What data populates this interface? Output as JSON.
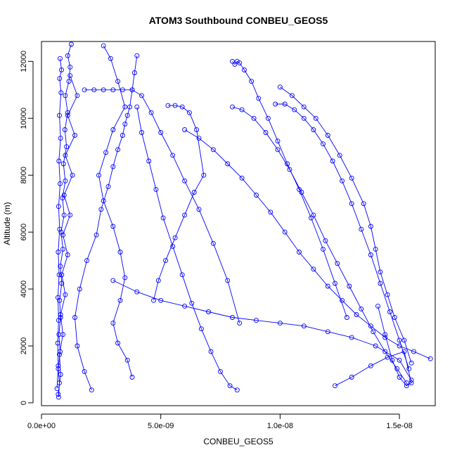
{
  "chart_data": {
    "type": "scatter",
    "title": "ATOM3 Southbound CONBEU_GEOS5",
    "xlabel": "CONBEU_GEOS5",
    "ylabel": "Altitude (m)",
    "xlim": [
      0,
      1.65e-08
    ],
    "ylim": [
      -100,
      12700
    ],
    "xticks": [
      0,
      5e-09,
      1e-08,
      1.5e-08
    ],
    "xtick_labels": [
      "0.0e+00",
      "5.0e-09",
      "1.0e-08",
      "1.5e-08"
    ],
    "yticks": [
      0,
      2000,
      4000,
      6000,
      8000,
      10000,
      12000
    ],
    "ytick_labels": [
      "0",
      "2000",
      "4000",
      "6000",
      "8000",
      "10000",
      "12000"
    ],
    "marker": "open-circle",
    "connected": true,
    "color": "#0000ff",
    "series": [
      {
        "x": [
          7.2e-10,
          7.5e-10,
          7e-10,
          7.8e-10,
          7.3e-10,
          8e-10,
          7.6e-10,
          8.5e-10,
          7.9e-10,
          9e-10,
          8.2e-10,
          9.5e-10,
          8.8e-10,
          1e-09,
          9.2e-10,
          1.05e-09,
          9.8e-10,
          1.1e-09,
          1e-09,
          1.15e-09,
          1.2e-09,
          1.1e-09,
          1.25e-09
        ],
        "y": [
          200,
          700,
          1200,
          1800,
          2400,
          3000,
          3600,
          4200,
          4800,
          5400,
          6000,
          6600,
          7200,
          7800,
          8400,
          9000,
          9600,
          10200,
          10800,
          11300,
          11800,
          12200,
          12600
        ]
      },
      {
        "x": [
          7e-10,
          8e-10,
          7.5e-10,
          9e-10,
          8e-10,
          1e-09,
          8.5e-10,
          1.1e-09,
          9e-10,
          1.2e-09,
          9.5e-10,
          1.3e-09,
          1e-09,
          1.4e-09,
          1.1e-09,
          1.5e-09,
          1.2e-09
        ],
        "y": [
          300,
          1000,
          1700,
          2400,
          3100,
          3800,
          4500,
          5200,
          5900,
          6600,
          7300,
          8000,
          8700,
          9400,
          10100,
          10800,
          11500
        ]
      },
      {
        "x": [
          6.5e-10,
          7e-10,
          6.8e-10,
          7.2e-10,
          6.9e-10,
          7.4e-10,
          7e-10,
          7.6e-10,
          7.2e-10,
          7.8e-10,
          7.3e-10,
          8e-10,
          7.5e-10,
          8.2e-10,
          7.6e-10,
          8.4e-10,
          7.8e-10
        ],
        "y": [
          500,
          1300,
          2100,
          2900,
          3700,
          4500,
          5300,
          6100,
          6900,
          7700,
          8500,
          9300,
          10100,
          10900,
          11400,
          11700,
          12100
        ]
      },
      {
        "x": [
          2.1e-09,
          1.8e-09,
          1.5e-09,
          1.4e-09,
          1.6e-09,
          1.9e-09,
          2.3e-09,
          2.5e-09,
          2.8e-09,
          3e-09,
          3.2e-09,
          3.4e-09,
          3.5e-09,
          3.6e-09,
          3.7e-09,
          3.8e-09,
          3.9e-09,
          4e-09
        ],
        "y": [
          450,
          1100,
          2000,
          3000,
          4000,
          5000,
          5900,
          6800,
          7600,
          8300,
          8900,
          9400,
          9800,
          10100,
          10400,
          11000,
          11600,
          12200
        ]
      },
      {
        "x": [
          2.6e-09,
          2.9e-09,
          3.2e-09,
          3.5e-09,
          3e-09,
          2.7e-09,
          2.4e-09,
          2.6e-09,
          3e-09,
          3.3e-09,
          3.5e-09,
          3.3e-09,
          3e-09,
          3.2e-09,
          3.6e-09,
          3.8e-09
        ],
        "y": [
          12550,
          12100,
          11300,
          10400,
          9600,
          8800,
          8000,
          7100,
          6200,
          5300,
          4400,
          3600,
          2800,
          2100,
          1500,
          900
        ]
      },
      {
        "x": [
          1.8e-09,
          2.2e-09,
          2.6e-09,
          3e-09,
          3.4e-09,
          3.8e-09,
          4.2e-09,
          4.6e-09,
          5e-09,
          5.5e-09,
          6e-09,
          6.6e-09,
          7.2e-09,
          7.8e-09,
          8.3e-09
        ],
        "y": [
          11000,
          11000,
          11000,
          11000,
          11000,
          11000,
          10800,
          10200,
          9500,
          8700,
          7800,
          6800,
          5600,
          4300,
          2800
        ]
      },
      {
        "x": [
          4e-09,
          4.2e-09,
          4.5e-09,
          4.8e-09,
          5.1e-09,
          5.5e-09,
          5.9e-09,
          6.3e-09,
          6.7e-09,
          7.1e-09,
          7.5e-09,
          7.9e-09,
          8.2e-09
        ],
        "y": [
          10400,
          9500,
          8500,
          7500,
          6500,
          5500,
          4500,
          3500,
          2600,
          1800,
          1100,
          600,
          450
        ]
      },
      {
        "x": [
          5.3e-09,
          5.6e-09,
          5.9e-09,
          6.2e-09,
          6.5e-09,
          6.8e-09,
          6.4e-09,
          6e-09,
          5.6e-09,
          5.2e-09,
          4.9e-09,
          4.7e-09
        ],
        "y": [
          10450,
          10450,
          10400,
          10200,
          9600,
          8000,
          7400,
          6600,
          5800,
          5000,
          4300,
          3600
        ]
      },
      {
        "x": [
          8e-09,
          8.1e-09,
          8.2e-09,
          8.3e-09,
          8.5e-09,
          8.8e-09,
          9.1e-09,
          9.5e-09,
          9.9e-09,
          1.03e-08,
          1.08e-08,
          1.13e-08,
          1.18e-08,
          1.23e-08,
          1.28e-08
        ],
        "y": [
          12000,
          11900,
          12000,
          11950,
          11700,
          11300,
          10700,
          10000,
          9200,
          8400,
          7500,
          6500,
          5400,
          4200,
          3000
        ]
      },
      {
        "x": [
          8e-09,
          8.4e-09,
          8.9e-09,
          9.4e-09,
          9.9e-09,
          1.04e-08,
          1.09e-08,
          1.14e-08,
          1.19e-08,
          1.24e-08,
          1.29e-08,
          1.34e-08,
          1.39e-08,
          1.44e-08,
          1.49e-08,
          1.53e-08
        ],
        "y": [
          10400,
          10300,
          10000,
          9500,
          8900,
          8200,
          7400,
          6600,
          5700,
          4900,
          4100,
          3300,
          2500,
          1800,
          1200,
          700
        ]
      },
      {
        "x": [
          9.8e-09,
          1.02e-08,
          1.06e-08,
          1.1e-08,
          1.14e-08,
          1.18e-08,
          1.22e-08,
          1.26e-08,
          1.3e-08,
          1.34e-08,
          1.38e-08,
          1.42e-08,
          1.46e-08,
          1.5e-08,
          1.54e-08
        ],
        "y": [
          10500,
          10500,
          10300,
          10000,
          9600,
          9100,
          8500,
          7800,
          7000,
          6100,
          5200,
          4200,
          3200,
          2200,
          1200
        ]
      },
      {
        "x": [
          1e-08,
          1.05e-08,
          1.1e-08,
          1.15e-08,
          1.2e-08,
          1.25e-08,
          1.3e-08,
          1.35e-08,
          1.38e-08,
          1.4e-08,
          1.42e-08,
          1.45e-08,
          1.48e-08,
          1.52e-08,
          1.55e-08
        ],
        "y": [
          11100,
          10800,
          10400,
          10000,
          9400,
          8700,
          7900,
          7000,
          6200,
          5400,
          4600,
          3800,
          3000,
          2200,
          1400
        ]
      },
      {
        "x": [
          6e-09,
          6.6e-09,
          7.2e-09,
          7.8e-09,
          8.4e-09,
          9e-09,
          9.6e-09,
          1.02e-08,
          1.08e-08,
          1.14e-08,
          1.2e-08,
          1.26e-08,
          1.32e-08,
          1.38e-08,
          1.44e-08,
          1.5e-08,
          1.56e-08,
          1.63e-08
        ],
        "y": [
          9600,
          9300,
          8900,
          8400,
          7900,
          7300,
          6700,
          6000,
          5300,
          4700,
          4100,
          3600,
          3100,
          2700,
          2300,
          2000,
          1800,
          1550
        ]
      },
      {
        "x": [
          3e-09,
          4e-09,
          5e-09,
          6e-09,
          7e-09,
          8e-09,
          9e-09,
          1e-08,
          1.1e-08,
          1.2e-08,
          1.3e-08,
          1.4e-08,
          1.5e-08,
          1.55e-08
        ],
        "y": [
          4300,
          3900,
          3600,
          3400,
          3200,
          3000,
          2900,
          2800,
          2700,
          2500,
          2300,
          2000,
          1500,
          800
        ]
      },
      {
        "x": [
          1.23e-08,
          1.3e-08,
          1.38e-08,
          1.45e-08,
          1.52e-08,
          1.55e-08,
          1.53e-08,
          1.5e-08,
          1.47e-08,
          1.44e-08,
          1.41e-08
        ],
        "y": [
          600,
          900,
          1300,
          1600,
          1800,
          700,
          600,
          900,
          1500,
          2400,
          3400
        ]
      }
    ]
  }
}
